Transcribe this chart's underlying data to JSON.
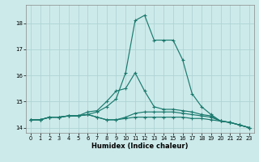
{
  "xlabel": "Humidex (Indice chaleur)",
  "background_color": "#cdeaea",
  "grid_color": "#aed4d4",
  "line_color": "#1a7a6e",
  "xlim": [
    -0.5,
    23.5
  ],
  "ylim": [
    13.8,
    18.7
  ],
  "yticks": [
    14,
    15,
    16,
    17,
    18
  ],
  "xticks": [
    0,
    1,
    2,
    3,
    4,
    5,
    6,
    7,
    8,
    9,
    10,
    11,
    12,
    13,
    14,
    15,
    16,
    17,
    18,
    19,
    20,
    21,
    22,
    23
  ],
  "series": [
    [
      14.3,
      14.3,
      14.4,
      14.4,
      14.45,
      14.45,
      14.5,
      14.6,
      14.8,
      15.1,
      16.1,
      18.1,
      18.3,
      17.35,
      17.35,
      17.35,
      16.6,
      15.3,
      14.8,
      14.5,
      14.25,
      14.2,
      14.1,
      14.0
    ],
    [
      14.3,
      14.3,
      14.4,
      14.4,
      14.45,
      14.45,
      14.6,
      14.65,
      15.0,
      15.4,
      15.5,
      16.1,
      15.4,
      14.8,
      14.7,
      14.7,
      14.65,
      14.6,
      14.5,
      14.45,
      14.25,
      14.2,
      14.1,
      14.0
    ],
    [
      14.3,
      14.3,
      14.4,
      14.4,
      14.45,
      14.45,
      14.5,
      14.4,
      14.3,
      14.3,
      14.4,
      14.55,
      14.6,
      14.6,
      14.6,
      14.6,
      14.55,
      14.5,
      14.45,
      14.4,
      14.25,
      14.2,
      14.1,
      14.0
    ],
    [
      14.3,
      14.3,
      14.4,
      14.4,
      14.45,
      14.45,
      14.5,
      14.4,
      14.3,
      14.3,
      14.35,
      14.4,
      14.4,
      14.4,
      14.4,
      14.4,
      14.4,
      14.35,
      14.35,
      14.3,
      14.25,
      14.2,
      14.1,
      14.0
    ]
  ]
}
